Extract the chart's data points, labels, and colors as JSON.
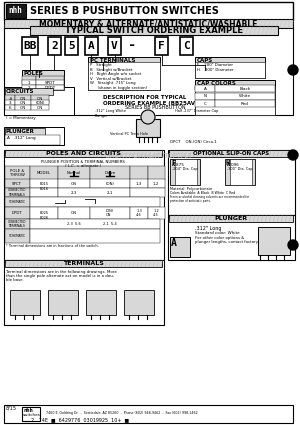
{
  "white": "#ffffff",
  "black": "#000000",
  "dark_gray": "#1a1a1a",
  "light_gray": "#d8d8d8",
  "med_gray": "#aaaaaa",
  "bg": "#e8e8e8",
  "title_text": "SERIES B PUSHBUTTON SWITCHES",
  "subtitle_text": "MOMENTARY & ALTERNATE/ANTISTATIC/WASHABLE",
  "section1_title": "TYPICAL SWITCH ORDERING EXAMPLE",
  "ordering_chars": [
    "BB",
    "2",
    "5",
    "A",
    "V",
    "-",
    "F",
    "C"
  ],
  "poles_rows": [
    [
      "1",
      "SPDT"
    ],
    [
      "2",
      "DPDT"
    ]
  ],
  "pc_rows": [
    "P   Straight",
    "B   Straight w/Bracket",
    "H   Right Angle w/o socket",
    "V   Vertical w/Bracket",
    "W   Straight .715\" Long",
    "      (shown in toggle section)"
  ],
  "caps_rows": [
    "F   .200\" Diameter",
    "H   .300\" Diameter"
  ],
  "circuits_rows": [
    [
      "3",
      "ON",
      "(ON)"
    ],
    [
      "6",
      "ON",
      "ON"
    ]
  ],
  "cap_colors_rows": [
    [
      "A",
      "Black"
    ],
    [
      "N",
      "White"
    ],
    [
      "C",
      "Red"
    ]
  ],
  "poles_circuits_title": "POLES AND CIRCUITS",
  "optional_title": "OPTIONAL SLIP-ON CAPS",
  "terminals_title": "TERMINALS",
  "company_logo": "nhh\nswitches",
  "company_addr": "7460 E. Goldring Dr.  -  Scottsdale, AZ 85260  -  Phone (602) 948-9462  -  Fax (602) 998-1462",
  "watermark": "ЭЛЕКТРОННЫЙ ПОРТАЛ"
}
